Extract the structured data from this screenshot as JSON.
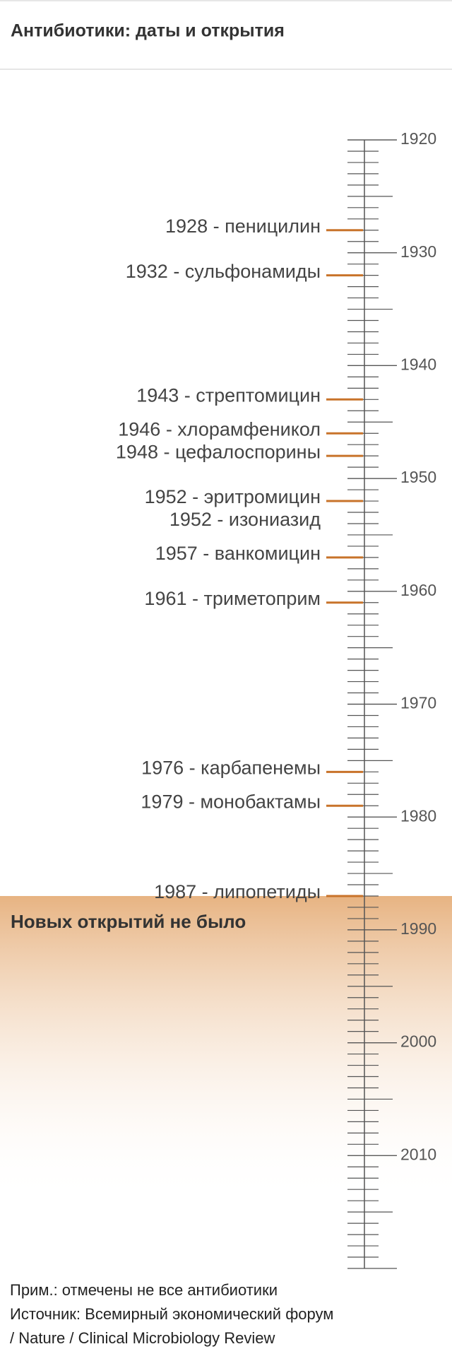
{
  "chart_data": {
    "type": "timeline",
    "title": "Антибиотики: даты и открытия",
    "values": [
      1928,
      1932,
      1943,
      1946,
      1948,
      1952,
      1952,
      1957,
      1961,
      1976,
      1979,
      1987
    ],
    "value_labels": [
      "1928 - пеницилин",
      "1932 - сульфонамиды",
      "1943 - стрептомицин",
      "1946 - хлорамфеникол",
      "1948 - цефалоспорины",
      "1952 - эритромицин",
      "1952 - изониазид",
      "1957 - ванкомицин",
      "1961 - триметоприм",
      "1976 - карбапенемы",
      "1979 - монобактамы",
      "1987 - липопетиды"
    ],
    "color": "#c8732a",
    "ylim": [
      1920,
      2020
    ],
    "yticks": [
      1920,
      1930,
      1940,
      1950,
      1960,
      1970,
      1980,
      1990,
      2000,
      2010
    ],
    "annotation": "Новых открытий не было",
    "note": "Прим.: отмечены не все антибиотики",
    "source": [
      "Источник: Всемирный экономический форум",
      "/ Nature / Clinical Microbiology Review"
    ]
  }
}
